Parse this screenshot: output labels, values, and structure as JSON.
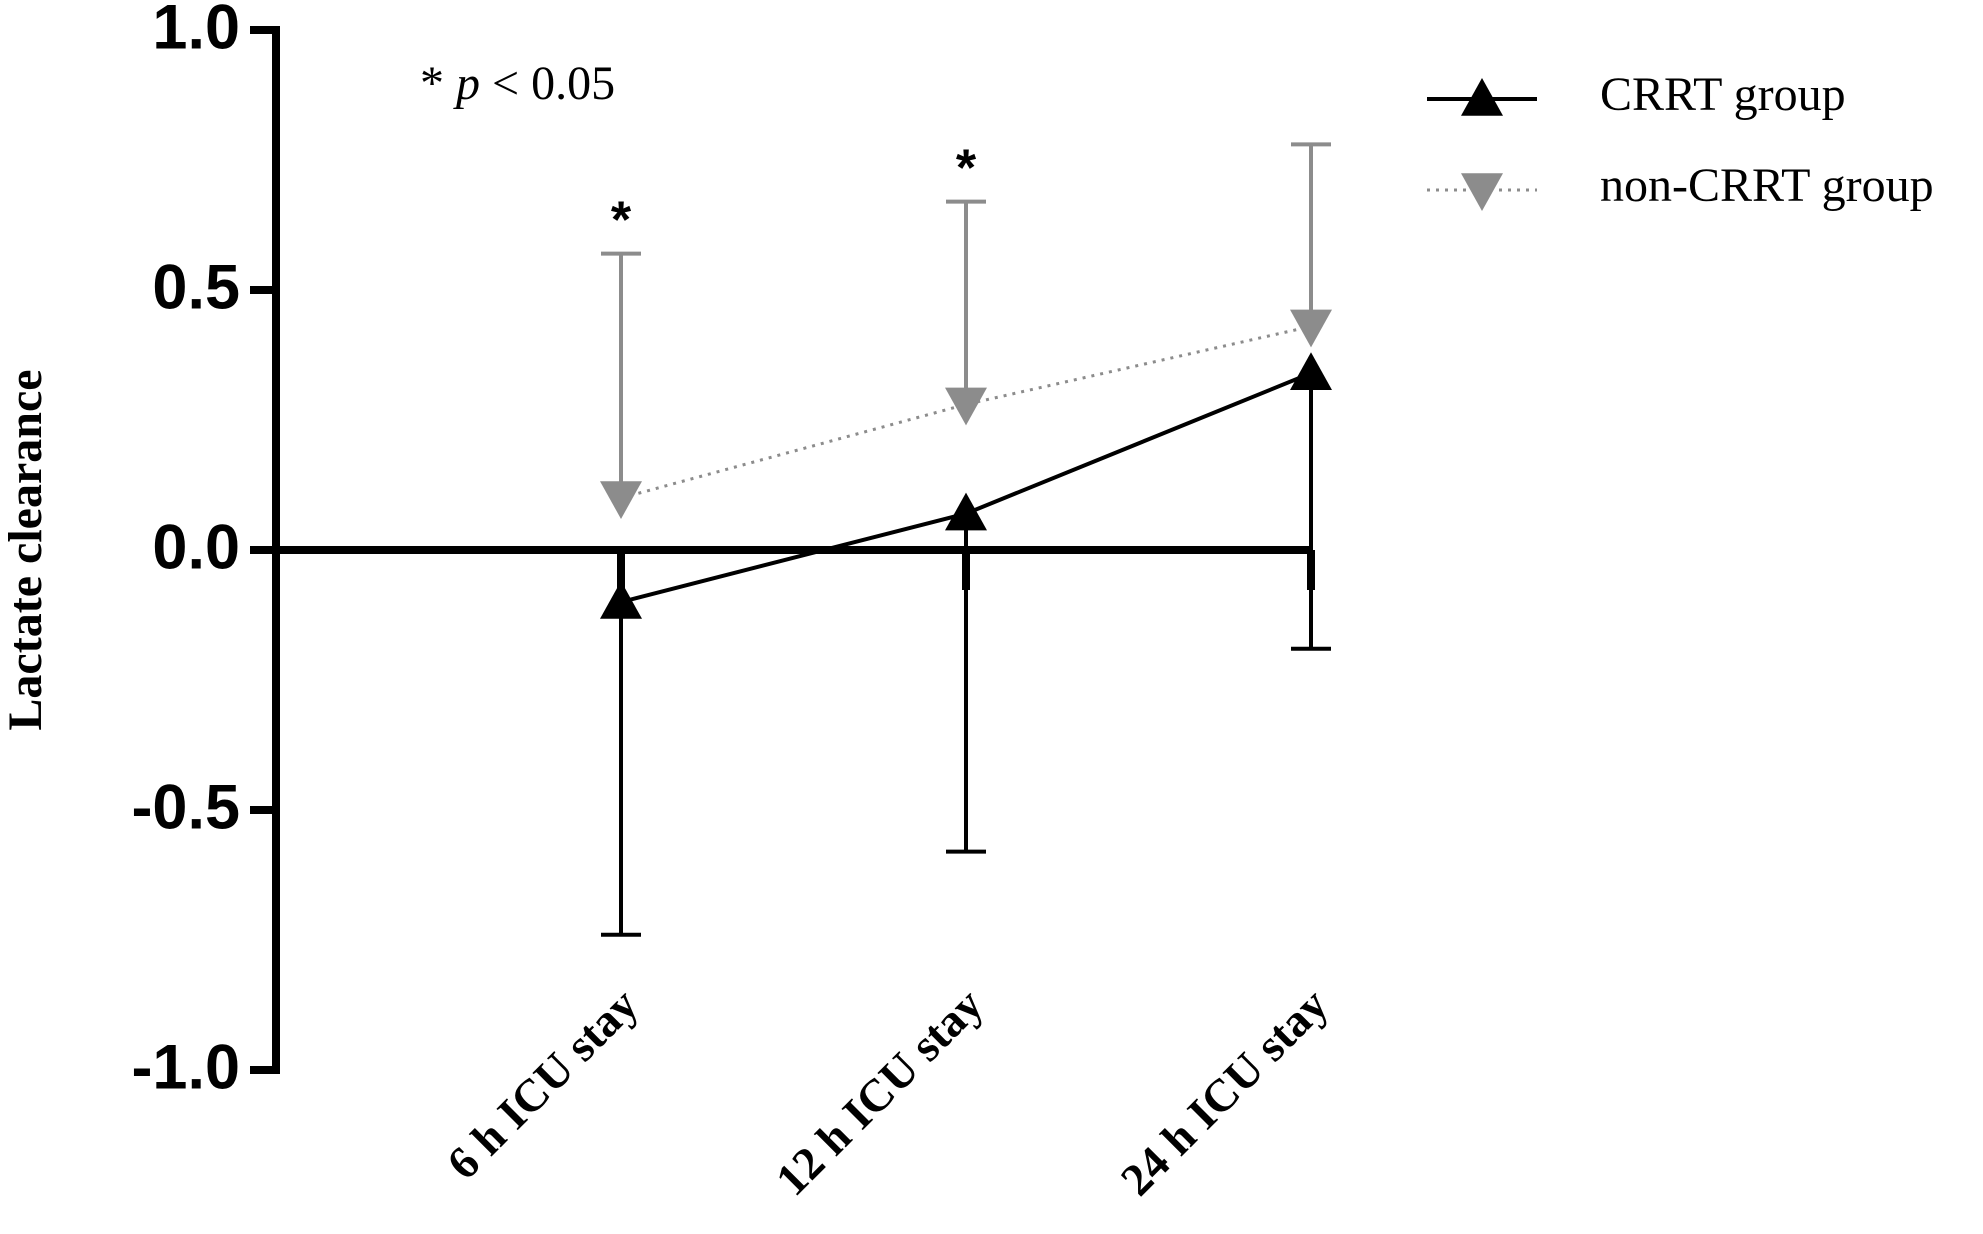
{
  "chart_data": {
    "type": "line",
    "y_label": "Lactate clearance",
    "annotation": {
      "marker": "*",
      "symbol": "p",
      "text": "< 0.05"
    },
    "categories": [
      "6 h ICU stay",
      "12 h ICU stay",
      "24 h ICU stay"
    ],
    "significance": [
      "*",
      "*",
      null
    ],
    "series": [
      {
        "name": "CRRT group",
        "color": "#000000",
        "marker": "triangle-up",
        "line_style": "solid",
        "error_direction": "down",
        "values": [
          -0.1,
          0.07,
          0.34
        ],
        "errors": [
          0.64,
          0.65,
          0.53
        ]
      },
      {
        "name": "non-CRRT group",
        "color": "#8c8c8c",
        "marker": "triangle-down",
        "line_style": "dotted",
        "error_direction": "up",
        "values": [
          0.1,
          0.28,
          0.43
        ],
        "errors": [
          0.47,
          0.39,
          0.35
        ]
      }
    ],
    "ylim": [
      -1,
      1
    ],
    "yticks": [
      {
        "value": -1,
        "label": "-1.0"
      },
      {
        "value": -0.5,
        "label": "-0.5"
      },
      {
        "value": 0,
        "label": "0.0"
      },
      {
        "value": 0.5,
        "label": "0.5"
      },
      {
        "value": 1,
        "label": "1.0"
      }
    ],
    "legend": "top-right"
  }
}
